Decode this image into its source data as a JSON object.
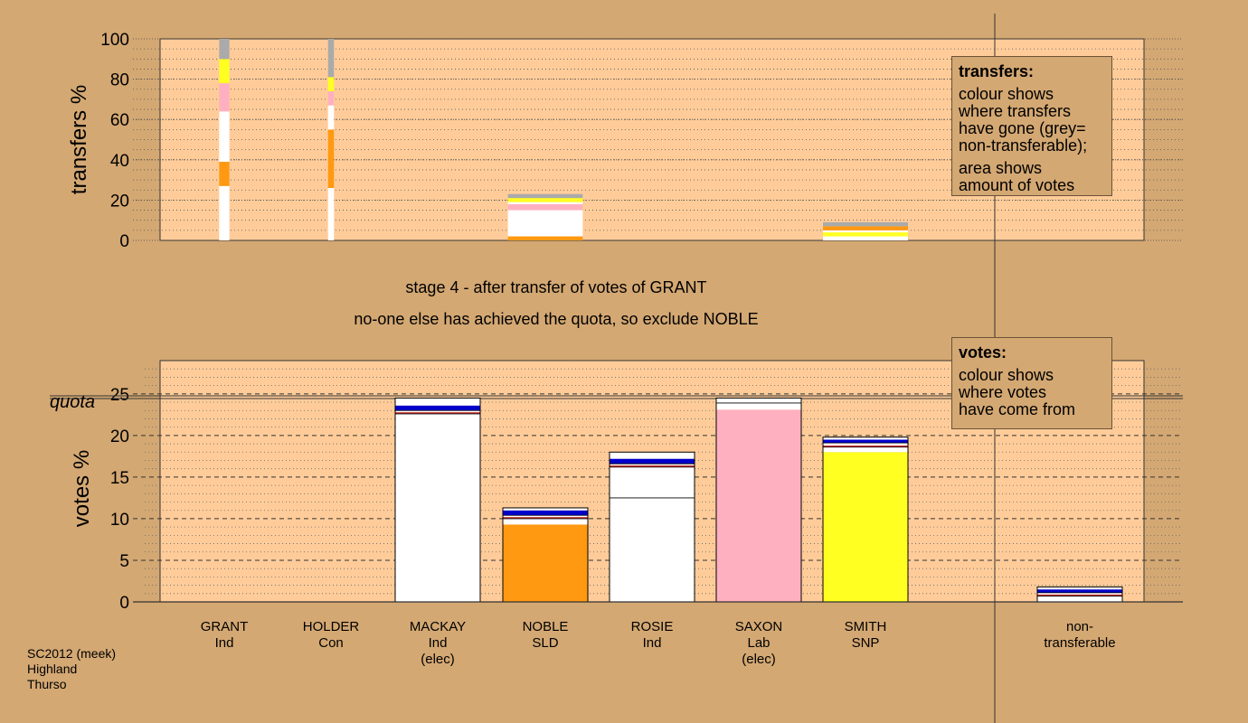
{
  "colors": {
    "background": "#d4a873",
    "plot_bg": "#ffcc99",
    "white": "#ffffff",
    "orange": "#ff9911",
    "pink": "#ffb0c0",
    "yellow": "#ffff22",
    "grey": "#aaaaaa",
    "blue": "#0000cc",
    "red": "#cc3333"
  },
  "legend_transfers": {
    "title": "transfers:",
    "lines": [
      "colour shows",
      "where transfers",
      "have gone (grey=",
      "non-transferable);"
    ],
    "lines2": [
      "area shows",
      "amount of votes"
    ]
  },
  "legend_votes": {
    "title": "votes:",
    "lines": [
      "colour shows",
      "where votes",
      "have come from"
    ]
  },
  "caption": {
    "line1": "stage 4 - after transfer of votes of GRANT",
    "line2": "no-one else has achieved the quota, so exclude NOBLE"
  },
  "source": [
    "SC2012 (meek)",
    "Highland",
    "Thurso"
  ],
  "quota_label": "quota",
  "candidates": [
    {
      "name": "GRANT",
      "party": "Ind",
      "note": ""
    },
    {
      "name": "HOLDER",
      "party": "Con",
      "note": ""
    },
    {
      "name": "MACKAY",
      "party": "Ind",
      "note": "(elec)"
    },
    {
      "name": "NOBLE",
      "party": "SLD",
      "note": ""
    },
    {
      "name": "ROSIE",
      "party": "Ind",
      "note": ""
    },
    {
      "name": "SAXON",
      "party": "Lab",
      "note": "(elec)"
    },
    {
      "name": "SMITH",
      "party": "SNP",
      "note": ""
    },
    {
      "name": "non-",
      "party": "transferable",
      "note": ""
    }
  ],
  "chart_data": [
    {
      "type": "bar",
      "ylabel": "transfers %",
      "ylim": [
        0,
        100
      ],
      "yticks": [
        0,
        20,
        40,
        60,
        80,
        100
      ],
      "categories": [
        "GRANT",
        "HOLDER",
        "MACKAY",
        "NOBLE",
        "ROSIE",
        "SAXON",
        "SMITH"
      ],
      "bars": [
        {
          "candidate": "GRANT",
          "width_share": 0.12,
          "segments": [
            {
              "color": "white",
              "from": 0,
              "to": 27
            },
            {
              "color": "orange",
              "from": 27,
              "to": 39
            },
            {
              "color": "white",
              "from": 39,
              "to": 64
            },
            {
              "color": "pink",
              "from": 64,
              "to": 78
            },
            {
              "color": "yellow",
              "from": 78,
              "to": 90
            },
            {
              "color": "grey",
              "from": 90,
              "to": 100
            }
          ]
        },
        {
          "candidate": "HOLDER",
          "width_share": 0.07,
          "segments": [
            {
              "color": "white",
              "from": 0,
              "to": 26
            },
            {
              "color": "orange",
              "from": 26,
              "to": 55
            },
            {
              "color": "white",
              "from": 55,
              "to": 67
            },
            {
              "color": "pink",
              "from": 67,
              "to": 74
            },
            {
              "color": "yellow",
              "from": 74,
              "to": 81
            },
            {
              "color": "grey",
              "from": 81,
              "to": 100
            }
          ]
        },
        {
          "candidate": "NOBLE",
          "width_share": 0.88,
          "segments": [
            {
              "color": "orange",
              "from": 0,
              "to": 2
            },
            {
              "color": "white",
              "from": 2,
              "to": 15
            },
            {
              "color": "pink",
              "from": 15,
              "to": 18
            },
            {
              "color": "white",
              "from": 18,
              "to": 19
            },
            {
              "color": "yellow",
              "from": 19,
              "to": 21
            },
            {
              "color": "grey",
              "from": 21,
              "to": 23
            }
          ]
        },
        {
          "candidate": "SMITH",
          "width_share": 1.0,
          "segments": [
            {
              "color": "white",
              "from": 0,
              "to": 2
            },
            {
              "color": "yellow",
              "from": 2,
              "to": 4
            },
            {
              "color": "white",
              "from": 4,
              "to": 5
            },
            {
              "color": "orange",
              "from": 5,
              "to": 7
            },
            {
              "color": "grey",
              "from": 7,
              "to": 9
            }
          ]
        }
      ]
    },
    {
      "type": "bar",
      "ylabel": "votes %",
      "ylim": [
        0,
        29
      ],
      "yticks": [
        0,
        5,
        10,
        15,
        20,
        25
      ],
      "quota": 24.6,
      "categories": [
        "GRANT",
        "HOLDER",
        "MACKAY",
        "NOBLE",
        "ROSIE",
        "SAXON",
        "SMITH",
        "non-transferable"
      ],
      "bars": [
        {
          "candidate": "MACKAY",
          "total": 24.5,
          "segments": [
            {
              "color": "white",
              "from": 0,
              "to": 22.6
            },
            {
              "color": "red",
              "from": 22.6,
              "to": 22.8
            },
            {
              "color": "white",
              "from": 22.8,
              "to": 23.0
            },
            {
              "color": "blue",
              "from": 23.0,
              "to": 23.6
            },
            {
              "color": "white",
              "from": 23.6,
              "to": 24.5
            }
          ]
        },
        {
          "candidate": "NOBLE",
          "total": 11.3,
          "segments": [
            {
              "color": "orange",
              "from": 0,
              "to": 9.3
            },
            {
              "color": "white",
              "from": 9.3,
              "to": 10.0
            },
            {
              "color": "red",
              "from": 10.0,
              "to": 10.2
            },
            {
              "color": "white",
              "from": 10.2,
              "to": 10.4
            },
            {
              "color": "blue",
              "from": 10.4,
              "to": 11.0
            },
            {
              "color": "white",
              "from": 11.0,
              "to": 11.3
            }
          ]
        },
        {
          "candidate": "ROSIE",
          "total": 18.0,
          "segments": [
            {
              "color": "white",
              "from": 0,
              "to": 12.5
            },
            {
              "color": "white",
              "from": 12.5,
              "to": 16.2
            },
            {
              "color": "red",
              "from": 16.2,
              "to": 16.4
            },
            {
              "color": "white",
              "from": 16.4,
              "to": 16.6
            },
            {
              "color": "blue",
              "from": 16.6,
              "to": 17.2
            },
            {
              "color": "white",
              "from": 17.2,
              "to": 18.0
            }
          ]
        },
        {
          "candidate": "SAXON",
          "total": 24.5,
          "segments": [
            {
              "color": "pink",
              "from": 0,
              "to": 23.1
            },
            {
              "color": "white",
              "from": 23.1,
              "to": 23.9
            },
            {
              "color": "white",
              "from": 23.9,
              "to": 24.5
            }
          ]
        },
        {
          "candidate": "SMITH",
          "total": 19.8,
          "segments": [
            {
              "color": "yellow",
              "from": 0,
              "to": 18.0
            },
            {
              "color": "white",
              "from": 18.0,
              "to": 18.6
            },
            {
              "color": "red",
              "from": 18.6,
              "to": 18.8
            },
            {
              "color": "white",
              "from": 18.8,
              "to": 19.1
            },
            {
              "color": "blue",
              "from": 19.1,
              "to": 19.5
            },
            {
              "color": "white",
              "from": 19.5,
              "to": 19.8
            }
          ]
        },
        {
          "candidate": "non-transferable",
          "total": 1.8,
          "segments": [
            {
              "color": "white",
              "from": 0,
              "to": 0.7
            },
            {
              "color": "red",
              "from": 0.7,
              "to": 0.9
            },
            {
              "color": "white",
              "from": 0.9,
              "to": 1.1
            },
            {
              "color": "blue",
              "from": 1.1,
              "to": 1.5
            },
            {
              "color": "white",
              "from": 1.5,
              "to": 1.8
            }
          ]
        }
      ]
    }
  ]
}
